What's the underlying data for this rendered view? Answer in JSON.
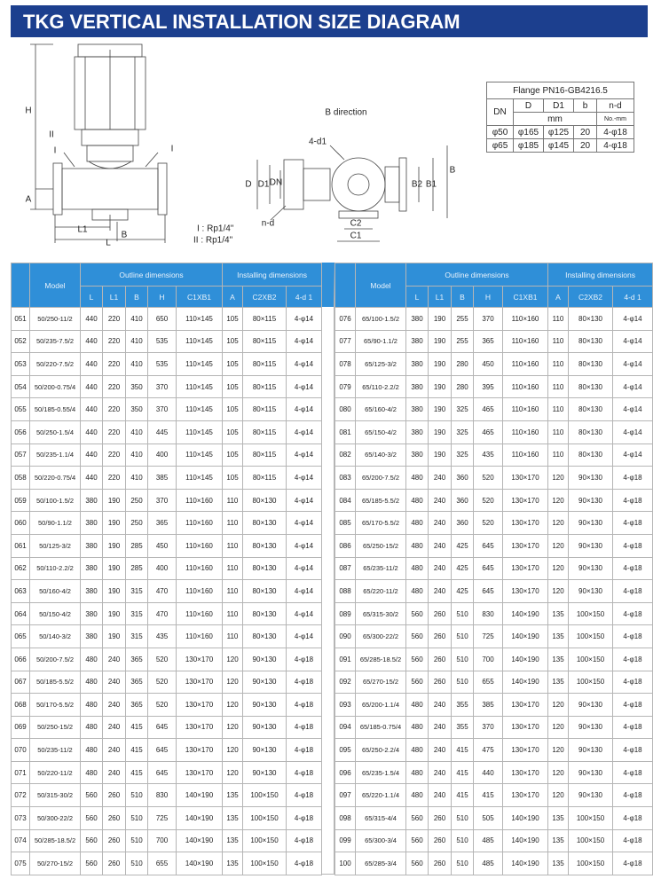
{
  "header": {
    "title": "TKG VERTICAL INSTALLATION SIZE DIAGRAM"
  },
  "diagram": {
    "front": {
      "H": "H",
      "A": "A",
      "L1": "L1",
      "L": "L",
      "B": "B",
      "I_left": "I",
      "I_right": "I",
      "II": "II"
    },
    "legend": [
      "I : Rp1/4\"",
      "II : Rp1/4\""
    ],
    "side": {
      "title": "B direction",
      "holes": "4-d1",
      "D": "D",
      "D1": "D1",
      "DN": "DN",
      "nd": "n-d",
      "C2": "C2",
      "C1": "C1",
      "B2": "B2",
      "B1": "B1",
      "B": "B"
    }
  },
  "flange": {
    "title": "Flange PN16-GB4216.5",
    "headers": [
      "DN",
      "D",
      "D1",
      "b",
      "n-d"
    ],
    "unit": "mm",
    "unit_nd": "No.-mm",
    "rows": [
      [
        "φ50",
        "φ165",
        "φ125",
        "20",
        "4-φ18"
      ],
      [
        "φ65",
        "φ185",
        "φ145",
        "20",
        "4-φ18"
      ]
    ]
  },
  "table": {
    "model": "Model",
    "outline": "Outline dimensions",
    "installing": "Installing dimensions",
    "columns": [
      "L",
      "L1",
      "B",
      "H",
      "C1XB1",
      "A",
      "C2XB2",
      "4-d 1"
    ],
    "left": [
      [
        "051",
        "50/250-11/2",
        "440",
        "220",
        "410",
        "650",
        "110×145",
        "105",
        "80×115",
        "4-φ14"
      ],
      [
        "052",
        "50/235-7.5/2",
        "440",
        "220",
        "410",
        "535",
        "110×145",
        "105",
        "80×115",
        "4-φ14"
      ],
      [
        "053",
        "50/220-7.5/2",
        "440",
        "220",
        "410",
        "535",
        "110×145",
        "105",
        "80×115",
        "4-φ14"
      ],
      [
        "054",
        "50/200-0.75/4",
        "440",
        "220",
        "350",
        "370",
        "110×145",
        "105",
        "80×115",
        "4-φ14"
      ],
      [
        "055",
        "50/185-0.55/4",
        "440",
        "220",
        "350",
        "370",
        "110×145",
        "105",
        "80×115",
        "4-φ14"
      ],
      [
        "056",
        "50/250-1.5/4",
        "440",
        "220",
        "410",
        "445",
        "110×145",
        "105",
        "80×115",
        "4-φ14"
      ],
      [
        "057",
        "50/235-1.1/4",
        "440",
        "220",
        "410",
        "400",
        "110×145",
        "105",
        "80×115",
        "4-φ14"
      ],
      [
        "058",
        "50/220-0.75/4",
        "440",
        "220",
        "410",
        "385",
        "110×145",
        "105",
        "80×115",
        "4-φ14"
      ],
      [
        "059",
        "50/100-1.5/2",
        "380",
        "190",
        "250",
        "370",
        "110×160",
        "110",
        "80×130",
        "4-φ14"
      ],
      [
        "060",
        "50/90-1.1/2",
        "380",
        "190",
        "250",
        "365",
        "110×160",
        "110",
        "80×130",
        "4-φ14"
      ],
      [
        "061",
        "50/125-3/2",
        "380",
        "190",
        "285",
        "450",
        "110×160",
        "110",
        "80×130",
        "4-φ14"
      ],
      [
        "062",
        "50/110-2.2/2",
        "380",
        "190",
        "285",
        "400",
        "110×160",
        "110",
        "80×130",
        "4-φ14"
      ],
      [
        "063",
        "50/160-4/2",
        "380",
        "190",
        "315",
        "470",
        "110×160",
        "110",
        "80×130",
        "4-φ14"
      ],
      [
        "064",
        "50/150-4/2",
        "380",
        "190",
        "315",
        "470",
        "110×160",
        "110",
        "80×130",
        "4-φ14"
      ],
      [
        "065",
        "50/140-3/2",
        "380",
        "190",
        "315",
        "435",
        "110×160",
        "110",
        "80×130",
        "4-φ14"
      ],
      [
        "066",
        "50/200-7.5/2",
        "480",
        "240",
        "365",
        "520",
        "130×170",
        "120",
        "90×130",
        "4-φ18"
      ],
      [
        "067",
        "50/185-5.5/2",
        "480",
        "240",
        "365",
        "520",
        "130×170",
        "120",
        "90×130",
        "4-φ18"
      ],
      [
        "068",
        "50/170-5.5/2",
        "480",
        "240",
        "365",
        "520",
        "130×170",
        "120",
        "90×130",
        "4-φ18"
      ],
      [
        "069",
        "50/250-15/2",
        "480",
        "240",
        "415",
        "645",
        "130×170",
        "120",
        "90×130",
        "4-φ18"
      ],
      [
        "070",
        "50/235-11/2",
        "480",
        "240",
        "415",
        "645",
        "130×170",
        "120",
        "90×130",
        "4-φ18"
      ],
      [
        "071",
        "50/220-11/2",
        "480",
        "240",
        "415",
        "645",
        "130×170",
        "120",
        "90×130",
        "4-φ18"
      ],
      [
        "072",
        "50/315-30/2",
        "560",
        "260",
        "510",
        "830",
        "140×190",
        "135",
        "100×150",
        "4-φ18"
      ],
      [
        "073",
        "50/300-22/2",
        "560",
        "260",
        "510",
        "725",
        "140×190",
        "135",
        "100×150",
        "4-φ18"
      ],
      [
        "074",
        "50/285-18.5/2",
        "560",
        "260",
        "510",
        "700",
        "140×190",
        "135",
        "100×150",
        "4-φ18"
      ],
      [
        "075",
        "50/270-15/2",
        "560",
        "260",
        "510",
        "655",
        "140×190",
        "135",
        "100×150",
        "4-φ18"
      ]
    ],
    "right": [
      [
        "076",
        "65/100-1.5/2",
        "380",
        "190",
        "255",
        "370",
        "110×160",
        "110",
        "80×130",
        "4-φ14"
      ],
      [
        "077",
        "65/90-1.1/2",
        "380",
        "190",
        "255",
        "365",
        "110×160",
        "110",
        "80×130",
        "4-φ14"
      ],
      [
        "078",
        "65/125-3/2",
        "380",
        "190",
        "280",
        "450",
        "110×160",
        "110",
        "80×130",
        "4-φ14"
      ],
      [
        "079",
        "65/110-2.2/2",
        "380",
        "190",
        "280",
        "395",
        "110×160",
        "110",
        "80×130",
        "4-φ14"
      ],
      [
        "080",
        "65/160-4/2",
        "380",
        "190",
        "325",
        "465",
        "110×160",
        "110",
        "80×130",
        "4-φ14"
      ],
      [
        "081",
        "65/150-4/2",
        "380",
        "190",
        "325",
        "465",
        "110×160",
        "110",
        "80×130",
        "4-φ14"
      ],
      [
        "082",
        "65/140-3/2",
        "380",
        "190",
        "325",
        "435",
        "110×160",
        "110",
        "80×130",
        "4-φ14"
      ],
      [
        "083",
        "65/200-7.5/2",
        "480",
        "240",
        "360",
        "520",
        "130×170",
        "120",
        "90×130",
        "4-φ18"
      ],
      [
        "084",
        "65/185-5.5/2",
        "480",
        "240",
        "360",
        "520",
        "130×170",
        "120",
        "90×130",
        "4-φ18"
      ],
      [
        "085",
        "65/170-5.5/2",
        "480",
        "240",
        "360",
        "520",
        "130×170",
        "120",
        "90×130",
        "4-φ18"
      ],
      [
        "086",
        "65/250-15/2",
        "480",
        "240",
        "425",
        "645",
        "130×170",
        "120",
        "90×130",
        "4-φ18"
      ],
      [
        "087",
        "65/235-11/2",
        "480",
        "240",
        "425",
        "645",
        "130×170",
        "120",
        "90×130",
        "4-φ18"
      ],
      [
        "088",
        "65/220-11/2",
        "480",
        "240",
        "425",
        "645",
        "130×170",
        "120",
        "90×130",
        "4-φ18"
      ],
      [
        "089",
        "65/315-30/2",
        "560",
        "260",
        "510",
        "830",
        "140×190",
        "135",
        "100×150",
        "4-φ18"
      ],
      [
        "090",
        "65/300-22/2",
        "560",
        "260",
        "510",
        "725",
        "140×190",
        "135",
        "100×150",
        "4-φ18"
      ],
      [
        "091",
        "65/285-18.5/2",
        "560",
        "260",
        "510",
        "700",
        "140×190",
        "135",
        "100×150",
        "4-φ18"
      ],
      [
        "092",
        "65/270-15/2",
        "560",
        "260",
        "510",
        "655",
        "140×190",
        "135",
        "100×150",
        "4-φ18"
      ],
      [
        "093",
        "65/200-1.1/4",
        "480",
        "240",
        "355",
        "385",
        "130×170",
        "120",
        "90×130",
        "4-φ18"
      ],
      [
        "094",
        "65/185-0.75/4",
        "480",
        "240",
        "355",
        "370",
        "130×170",
        "120",
        "90×130",
        "4-φ18"
      ],
      [
        "095",
        "65/250-2.2/4",
        "480",
        "240",
        "415",
        "475",
        "130×170",
        "120",
        "90×130",
        "4-φ18"
      ],
      [
        "096",
        "65/235-1.5/4",
        "480",
        "240",
        "415",
        "440",
        "130×170",
        "120",
        "90×130",
        "4-φ18"
      ],
      [
        "097",
        "65/220-1.1/4",
        "480",
        "240",
        "415",
        "415",
        "130×170",
        "120",
        "90×130",
        "4-φ18"
      ],
      [
        "098",
        "65/315-4/4",
        "560",
        "260",
        "510",
        "505",
        "140×190",
        "135",
        "100×150",
        "4-φ18"
      ],
      [
        "099",
        "65/300-3/4",
        "560",
        "260",
        "510",
        "485",
        "140×190",
        "135",
        "100×150",
        "4-φ18"
      ],
      [
        "100",
        "65/285-3/4",
        "560",
        "260",
        "510",
        "485",
        "140×190",
        "135",
        "100×150",
        "4-φ18"
      ]
    ]
  }
}
